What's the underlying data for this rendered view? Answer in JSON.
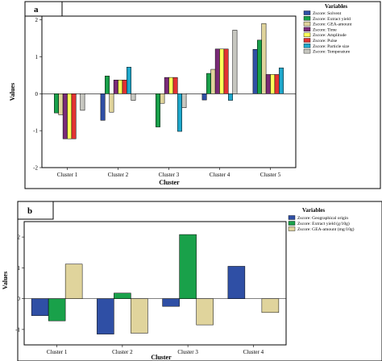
{
  "chart_data": [
    {
      "type": "bar",
      "panel_label": "a",
      "categories": [
        "Cluster 1",
        "Cluster 2",
        "Cluster 3",
        "Cluster 4",
        "Cluster 5"
      ],
      "xlabel": "Cluster",
      "ylabel": "Values",
      "ylim": [
        -2,
        2.1
      ],
      "yticks": [
        -2,
        -1,
        0,
        1,
        2
      ],
      "legend_title": "Variables",
      "legend_position": "top-right",
      "series": [
        {
          "name": "Zscore:  Solvent",
          "color": "#2f4fa5",
          "values": [
            0.0,
            -0.72,
            0.0,
            -0.17,
            1.2
          ]
        },
        {
          "name": "Zscore:  Extract yield",
          "color": "#19a14a",
          "values": [
            -0.52,
            0.48,
            -0.9,
            0.55,
            1.45
          ]
        },
        {
          "name": "Zscore:  GEA-amount",
          "color": "#e0d49c",
          "values": [
            -0.57,
            -0.5,
            -0.26,
            0.66,
            1.9
          ]
        },
        {
          "name": "Zscore:  Time",
          "color": "#7a2a78",
          "values": [
            -1.22,
            0.37,
            0.44,
            1.21,
            0.52
          ]
        },
        {
          "name": "Zscore:  Amplitude",
          "color": "#ffff5a",
          "values": [
            -1.22,
            0.37,
            0.44,
            1.21,
            0.52
          ]
        },
        {
          "name": "Zscore:  Pulse",
          "color": "#e23232",
          "values": [
            -1.22,
            0.37,
            0.44,
            1.21,
            0.52
          ]
        },
        {
          "name": "Zscore:  Particle size",
          "color": "#1ea8cc",
          "values": [
            0.0,
            0.72,
            -1.02,
            -0.18,
            0.7
          ]
        },
        {
          "name": "Zscore:  Temperature",
          "color": "#c7c7c0",
          "values": [
            -0.45,
            -0.18,
            -0.38,
            1.72,
            0.0
          ]
        }
      ]
    },
    {
      "type": "bar",
      "panel_label": "b",
      "categories": [
        "Cluster 1",
        "Cluster 2",
        "Cluster 3",
        "Cluster 4"
      ],
      "xlabel": "Cluster",
      "ylabel": "Values",
      "ylim": [
        -1.5,
        2.5
      ],
      "yticks": [
        -1,
        0,
        1,
        2
      ],
      "legend_title": "Variables",
      "legend_position": "top-right",
      "series": [
        {
          "name": "Zscore:  Geographical origin",
          "color": "#2f4fa5",
          "values": [
            -0.55,
            -1.15,
            -0.25,
            1.05
          ]
        },
        {
          "name": "Zscore:  Extract yield (g/10g)",
          "color": "#19a14a",
          "values": [
            -0.72,
            0.18,
            2.08,
            0.0
          ]
        },
        {
          "name": "Zscore:  GEA-amount (mg/10g)",
          "color": "#e0d49c",
          "values": [
            1.12,
            -1.12,
            -0.85,
            -0.45
          ]
        }
      ]
    }
  ]
}
